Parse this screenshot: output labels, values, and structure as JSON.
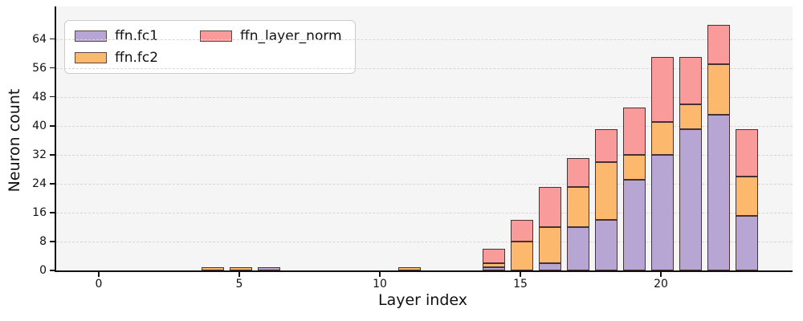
{
  "figure": {
    "xlabel": "Layer index",
    "ylabel": "Neuron count",
    "plot_background": "#f5f5f5",
    "figure_background": "#ffffff",
    "grid_color": "#d6d6d6",
    "bar_edge_color": "#453333"
  },
  "chart_data": {
    "type": "bar",
    "stacked": true,
    "title": "",
    "xlabel": "Layer index",
    "ylabel": "Neuron count",
    "categories": [
      0,
      1,
      2,
      3,
      4,
      5,
      6,
      7,
      8,
      9,
      10,
      11,
      12,
      13,
      14,
      15,
      16,
      17,
      18,
      19,
      20,
      21,
      22,
      23
    ],
    "series": [
      {
        "name": "ffn.fc1",
        "color": "#b7a6d3",
        "values": [
          0,
          0,
          0,
          0,
          0,
          0,
          1,
          0,
          0,
          0,
          0,
          0,
          0,
          0,
          1,
          0,
          2,
          12,
          14,
          25,
          32,
          39,
          43,
          15
        ]
      },
      {
        "name": "ffn.fc2",
        "color": "#fcb96d",
        "values": [
          0,
          0,
          0,
          0,
          1,
          1,
          0,
          0,
          0,
          0,
          0,
          1,
          0,
          0,
          1,
          8,
          10,
          11,
          16,
          7,
          9,
          7,
          14,
          11
        ]
      },
      {
        "name": "ffn_layer_norm",
        "color": "#fa9b9b",
        "values": [
          0,
          0,
          0,
          0,
          0,
          0,
          0,
          0,
          0,
          0,
          0,
          0,
          0,
          0,
          4,
          6,
          11,
          8,
          9,
          13,
          18,
          13,
          11,
          13
        ]
      }
    ],
    "xticks": [
      0,
      5,
      10,
      15,
      20
    ],
    "yticks": [
      0,
      8,
      16,
      24,
      32,
      40,
      48,
      56,
      64
    ],
    "ylim": [
      0,
      73
    ],
    "grid": "horizontal-dashed",
    "legend_position": "upper-left"
  }
}
